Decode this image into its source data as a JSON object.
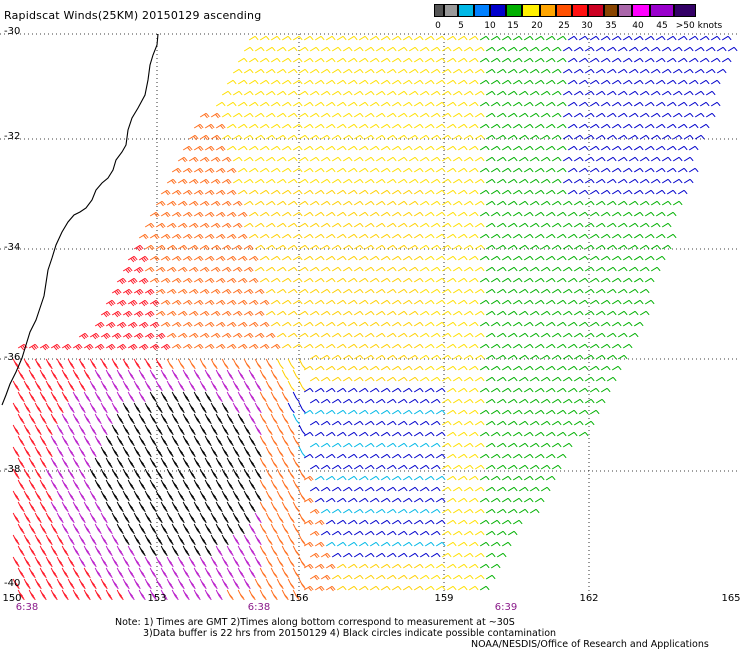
{
  "title": "Rapidscat Winds(25KM) 20150129 ascending",
  "legend": {
    "labels": [
      "0",
      "5",
      "10",
      "15",
      "20",
      "25",
      "30",
      "35",
      "40",
      "45",
      ">50 knots"
    ],
    "colors": [
      "#555555",
      "#999999",
      "#00b8e6",
      "#0080ff",
      "#0000cc",
      "#00b000",
      "#fff000",
      "#ffa500",
      "#ff5000",
      "#ff1010",
      "#cc0022",
      "#884400",
      "#aa66aa",
      "#ff00ff",
      "#9900cc",
      "#330066"
    ]
  },
  "axes": {
    "lat_labels": [
      "-30",
      "-32",
      "-34",
      "-36",
      "-38",
      "-40"
    ],
    "lon_labels": [
      "150",
      "153",
      "156",
      "159",
      "162",
      "165"
    ]
  },
  "times": [
    "6:38",
    "6:38",
    "6:39"
  ],
  "notes": [
    "Note: 1) Times are GMT 2)Times along bottom correspond to measurement at ~30S",
    "3)Data buffer is 22 hrs from 20150129 4) Black circles indicate possible contamination",
    "NOAA/NESDIS/Office of Research and Applications"
  ]
}
